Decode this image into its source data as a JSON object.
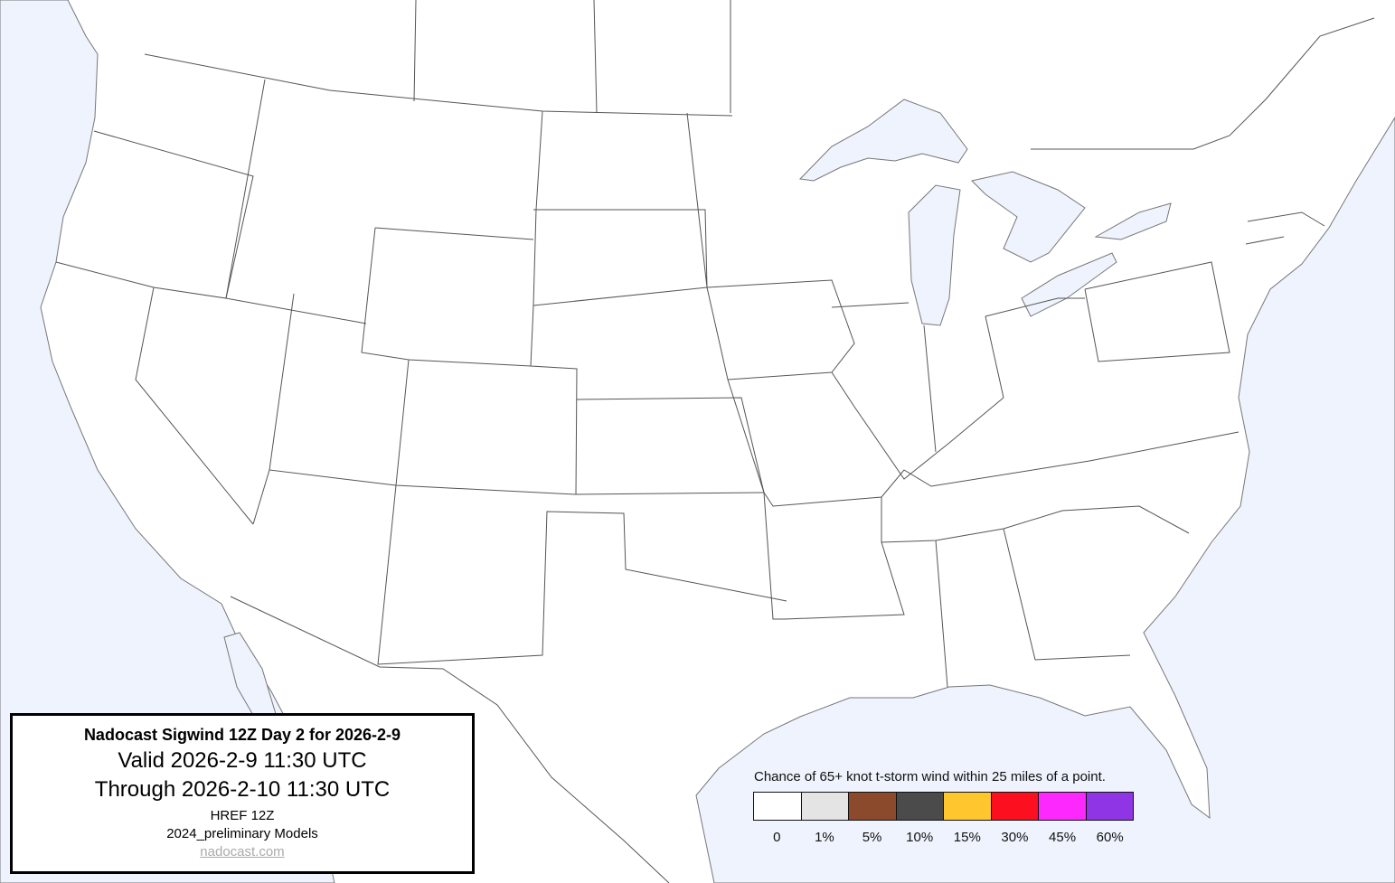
{
  "title_box": {
    "title": "Nadocast Sigwind 12Z Day 2 for 2026-2-9",
    "valid": "Valid 2026-2-9 11:30 UTC",
    "through": "Through 2026-2-10 11:30 UTC",
    "model": "HREF 12Z",
    "models_version": "2024_preliminary Models",
    "link": "nadocast.com"
  },
  "legend": {
    "title": "Chance of 65+ knot t-storm wind within 25 miles of a point.",
    "bins": [
      {
        "label": "0",
        "color": "#ffffff"
      },
      {
        "label": "1%",
        "color": "#e4e4e4"
      },
      {
        "label": "5%",
        "color": "#8b4a2b"
      },
      {
        "label": "10%",
        "color": "#4b4b4b"
      },
      {
        "label": "15%",
        "color": "#ffc62e"
      },
      {
        "label": "30%",
        "color": "#fc0f1e"
      },
      {
        "label": "45%",
        "color": "#fd28fd"
      },
      {
        "label": "60%",
        "color": "#9035e6"
      }
    ]
  },
  "map": {
    "water_color": "#eef3fd",
    "land_color": "#ffffff",
    "border_color": "#555555"
  }
}
